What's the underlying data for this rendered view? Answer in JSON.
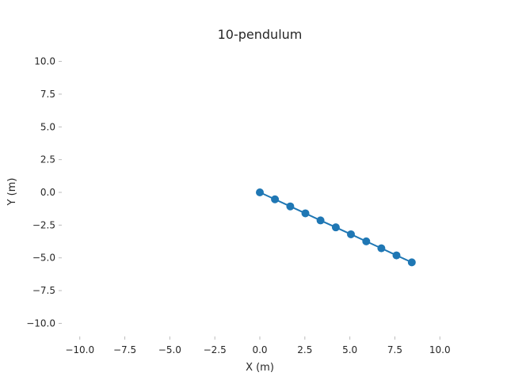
{
  "chart_data": {
    "type": "line",
    "title": "10-pendulum",
    "xlabel": "X (m)",
    "ylabel": "Y (m)",
    "xlim": [
      -11,
      11
    ],
    "ylim": [
      -11,
      11
    ],
    "xticks": [
      -10.0,
      -7.5,
      -5.0,
      -2.5,
      0.0,
      2.5,
      5.0,
      7.5,
      10.0
    ],
    "yticks": [
      -10.0,
      -7.5,
      -5.0,
      -2.5,
      0.0,
      2.5,
      5.0,
      7.5,
      10.0
    ],
    "xtick_labels": [
      "−10.0",
      "−7.5",
      "−5.0",
      "−2.5",
      "0.0",
      "2.5",
      "5.0",
      "7.5",
      "10.0"
    ],
    "ytick_labels": [
      "−10.0",
      "−7.5",
      "−5.0",
      "−2.5",
      "0.0",
      "2.5",
      "5.0",
      "7.5",
      "10.0"
    ],
    "grid": false,
    "color": "#1f77b4",
    "series": [
      {
        "x": [
          0.0,
          0.84,
          1.69,
          2.53,
          3.37,
          4.22,
          5.06,
          5.91,
          6.75,
          7.59,
          8.44
        ],
        "y": [
          0.0,
          -0.53,
          -1.07,
          -1.6,
          -2.14,
          -2.67,
          -3.2,
          -3.74,
          -4.27,
          -4.81,
          -5.34
        ]
      }
    ]
  }
}
